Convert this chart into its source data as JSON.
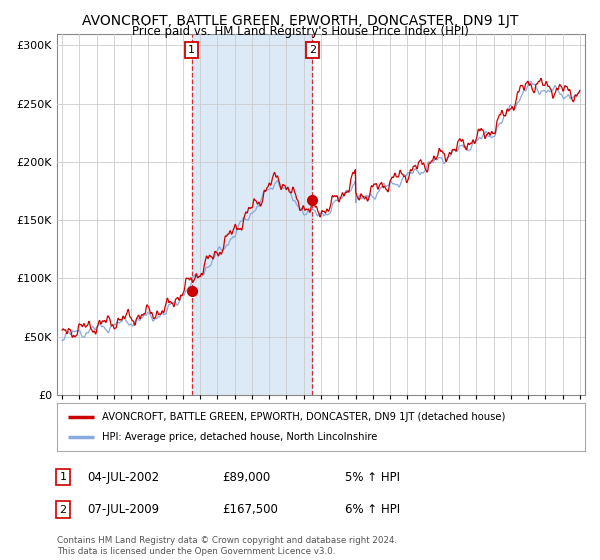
{
  "title": "AVONCROFT, BATTLE GREEN, EPWORTH, DONCASTER, DN9 1JT",
  "subtitle": "Price paid vs. HM Land Registry's House Price Index (HPI)",
  "title_fontsize": 10,
  "subtitle_fontsize": 8.5,
  "bg_color": "#ffffff",
  "plot_bg_color": "#ffffff",
  "grid_color": "#cccccc",
  "sale_line_color": "#cc0000",
  "hpi_line_color": "#88aadd",
  "highlight_bg_color": "#dce9f7",
  "sale1_x": 2002.5,
  "sale2_x": 2009.5,
  "sale1_y": 89000,
  "sale2_y": 167500,
  "legend_sale_label": "AVONCROFT, BATTLE GREEN, EPWORTH, DONCASTER, DN9 1JT (detached house)",
  "legend_hpi_label": "HPI: Average price, detached house, North Lincolnshire",
  "table_rows": [
    [
      "1",
      "04-JUL-2002",
      "£89,000",
      "5% ↑ HPI"
    ],
    [
      "2",
      "07-JUL-2009",
      "£167,500",
      "6% ↑ HPI"
    ]
  ],
  "footer": "Contains HM Land Registry data © Crown copyright and database right 2024.\nThis data is licensed under the Open Government Licence v3.0.",
  "ylim": [
    0,
    310000
  ],
  "yticks": [
    0,
    50000,
    100000,
    150000,
    200000,
    250000,
    300000
  ],
  "xlim_start": 1994.7,
  "xlim_end": 2025.3,
  "xticks": [
    1995,
    1996,
    1997,
    1998,
    1999,
    2000,
    2001,
    2002,
    2003,
    2004,
    2005,
    2006,
    2007,
    2008,
    2009,
    2010,
    2011,
    2012,
    2013,
    2014,
    2015,
    2016,
    2017,
    2018,
    2019,
    2020,
    2021,
    2022,
    2023,
    2024,
    2025
  ]
}
